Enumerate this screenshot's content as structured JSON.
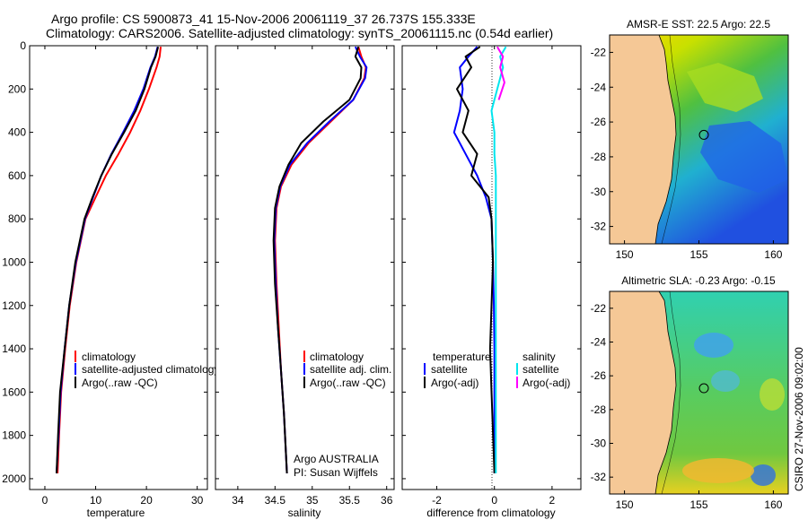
{
  "header": {
    "line1": "Argo profile: CS 5900873_41 15-Nov-2006 20061119_37 26.737S 155.333E",
    "line2": "Climatology: CARS2006. Satellite-adjusted climatology: synTS_20061115.nc (0.54d earlier)"
  },
  "colors": {
    "climatology": "#ff0000",
    "satellite": "#0000ff",
    "argo": "#000000",
    "sat_salinity": "#00e5ee",
    "argo_salinity": "#ff00ff",
    "land": "#f5c896"
  },
  "chart_data": [
    {
      "type": "line",
      "id": "temperature-profile",
      "xlabel": "temperature",
      "ylabel": "",
      "xlim": [
        -3,
        32
      ],
      "ylim": [
        2050,
        0
      ],
      "xticks": [
        0,
        10,
        20,
        30
      ],
      "yticks": [
        0,
        200,
        400,
        600,
        800,
        1000,
        1200,
        1400,
        1600,
        1800,
        2000
      ],
      "legend": [
        "climatology",
        "satellite-adjusted climatology",
        "Argo(..raw -QC)"
      ],
      "legend_loc": "lower-right",
      "series": [
        {
          "name": "climatology",
          "color": "#ff0000",
          "x": [
            22.8,
            22.6,
            22.0,
            20.5,
            18.8,
            16.8,
            14.5,
            12.0,
            10.0,
            8.0,
            6.2,
            4.9,
            4.0,
            3.2,
            2.8,
            2.5
          ],
          "y": [
            5,
            50,
            100,
            200,
            300,
            400,
            500,
            600,
            700,
            800,
            1000,
            1200,
            1400,
            1600,
            1800,
            1975
          ]
        },
        {
          "name": "satellite-adjusted climatology",
          "color": "#0000ff",
          "x": [
            22.2,
            21.7,
            20.8,
            19.4,
            17.6,
            15.4,
            13.1,
            11.1,
            9.5,
            7.9,
            6.1,
            4.8,
            3.9,
            3.1,
            2.7,
            2.3
          ],
          "y": [
            5,
            50,
            100,
            200,
            300,
            400,
            500,
            600,
            700,
            800,
            1000,
            1200,
            1400,
            1600,
            1800,
            1975
          ]
        },
        {
          "name": "Argo(..raw -QC)",
          "color": "#000000",
          "x": [
            22.3,
            21.8,
            20.9,
            19.6,
            17.9,
            15.6,
            13.2,
            11.1,
            9.4,
            7.8,
            6.0,
            4.8,
            3.9,
            3.0,
            2.6,
            2.3
          ],
          "y": [
            5,
            50,
            100,
            200,
            300,
            400,
            500,
            600,
            700,
            800,
            1000,
            1200,
            1400,
            1600,
            1800,
            1975
          ]
        }
      ]
    },
    {
      "type": "line",
      "id": "salinity-profile",
      "xlabel": "salinity",
      "xlim": [
        33.7,
        36.1
      ],
      "ylim": [
        2050,
        0
      ],
      "xticks": [
        34,
        34.5,
        35,
        35.5,
        36
      ],
      "legend": [
        "climatology",
        "satellite adj. clim.",
        "Argo(..raw -QC)"
      ],
      "legend_loc": "lower-right",
      "annotation": [
        "Argo AUSTRALIA",
        "PI: Susan Wijffels"
      ],
      "series": [
        {
          "name": "climatology",
          "color": "#ff0000",
          "x": [
            35.62,
            35.66,
            35.72,
            35.7,
            35.55,
            35.25,
            34.95,
            34.72,
            34.58,
            34.52,
            34.5,
            34.52,
            34.55,
            34.58,
            34.62,
            34.66
          ],
          "y": [
            5,
            50,
            100,
            150,
            250,
            350,
            450,
            550,
            650,
            750,
            900,
            1100,
            1300,
            1500,
            1700,
            1975
          ]
        },
        {
          "name": "satellite adj. clim.",
          "color": "#0000ff",
          "x": [
            35.58,
            35.64,
            35.73,
            35.71,
            35.55,
            35.23,
            34.93,
            34.7,
            34.57,
            34.51,
            34.49,
            34.51,
            34.54,
            34.58,
            34.62,
            34.66
          ],
          "y": [
            5,
            50,
            100,
            150,
            250,
            350,
            450,
            550,
            650,
            750,
            900,
            1100,
            1300,
            1500,
            1700,
            1975
          ]
        },
        {
          "name": "Argo(..raw -QC)",
          "color": "#000000",
          "x": [
            35.62,
            35.58,
            35.66,
            35.65,
            35.5,
            35.15,
            34.85,
            34.68,
            34.56,
            34.5,
            34.48,
            34.5,
            34.54,
            34.58,
            34.62,
            34.66
          ],
          "y": [
            5,
            50,
            100,
            150,
            250,
            350,
            450,
            550,
            650,
            750,
            900,
            1100,
            1300,
            1500,
            1700,
            1975
          ]
        }
      ]
    },
    {
      "type": "line",
      "id": "difference-profile",
      "xlabel": "difference from climatology",
      "xlim": [
        -3.2,
        3.0
      ],
      "ylim": [
        2050,
        0
      ],
      "xticks": [
        -2,
        0,
        2
      ],
      "legend_temperature_title": "temperature",
      "legend_salinity_title": "salinity",
      "legend": [
        "satellite",
        "Argo(-adj)",
        "satellite",
        "Argo(-adj)"
      ],
      "series": [
        {
          "name": "temperature satellite",
          "color": "#0000ff",
          "x": [
            -0.6,
            -0.9,
            -1.2,
            -1.1,
            -1.2,
            -1.4,
            -1.0,
            -0.6,
            -0.3,
            -0.1,
            -0.05,
            -0.02,
            0.0,
            0.0,
            0.0
          ],
          "y": [
            5,
            50,
            100,
            200,
            300,
            400,
            500,
            600,
            700,
            800,
            1000,
            1200,
            1400,
            1600,
            1975
          ]
        },
        {
          "name": "temperature Argo(-adj)",
          "color": "#000000",
          "x": [
            -0.5,
            -1.0,
            -0.8,
            -1.3,
            -0.9,
            -1.1,
            -0.6,
            -0.8,
            -0.2,
            -0.1,
            -0.05,
            -0.1,
            -0.15,
            -0.1,
            0.0
          ],
          "y": [
            5,
            50,
            100,
            200,
            300,
            400,
            500,
            600,
            700,
            800,
            1000,
            1200,
            1400,
            1600,
            1975
          ]
        },
        {
          "name": "salinity satellite",
          "color": "#00e5ee",
          "x": [
            0.4,
            0.2,
            0.3,
            0.1,
            -0.1,
            0.0,
            0.0,
            0.05,
            0.05,
            0.05,
            0.05,
            0.05,
            0.05,
            0.05,
            0.05
          ],
          "y": [
            5,
            50,
            100,
            200,
            300,
            400,
            500,
            600,
            700,
            800,
            1000,
            1200,
            1400,
            1600,
            1975
          ]
        },
        {
          "name": "salinity Argo(-adj)",
          "color": "#ff00ff",
          "x": [
            0.1,
            0.3,
            0.2,
            0.35,
            0.15
          ],
          "y": [
            5,
            50,
            100,
            170,
            250
          ]
        }
      ]
    },
    {
      "type": "heatmap",
      "id": "sst-map",
      "title": "AMSR-E SST: 22.5 Argo: 22.5",
      "xlim": [
        149,
        161
      ],
      "ylim": [
        -33,
        -21
      ],
      "xticks": [
        150,
        155,
        160
      ],
      "yticks": [
        -22,
        -24,
        -26,
        -28,
        -30,
        -32
      ],
      "marker": {
        "lon": 155.333,
        "lat": -26.737
      }
    },
    {
      "type": "heatmap",
      "id": "sla-map",
      "title": "Altimetric SLA: -0.23 Argo: -0.15",
      "xlim": [
        149,
        161
      ],
      "ylim": [
        -33,
        -21
      ],
      "xticks": [
        150,
        155,
        160
      ],
      "yticks": [
        -22,
        -24,
        -26,
        -28,
        -30,
        -32
      ],
      "marker": {
        "lon": 155.333,
        "lat": -26.737
      }
    }
  ],
  "credit": "CSIRO 27-Nov-2006 09:02:00"
}
